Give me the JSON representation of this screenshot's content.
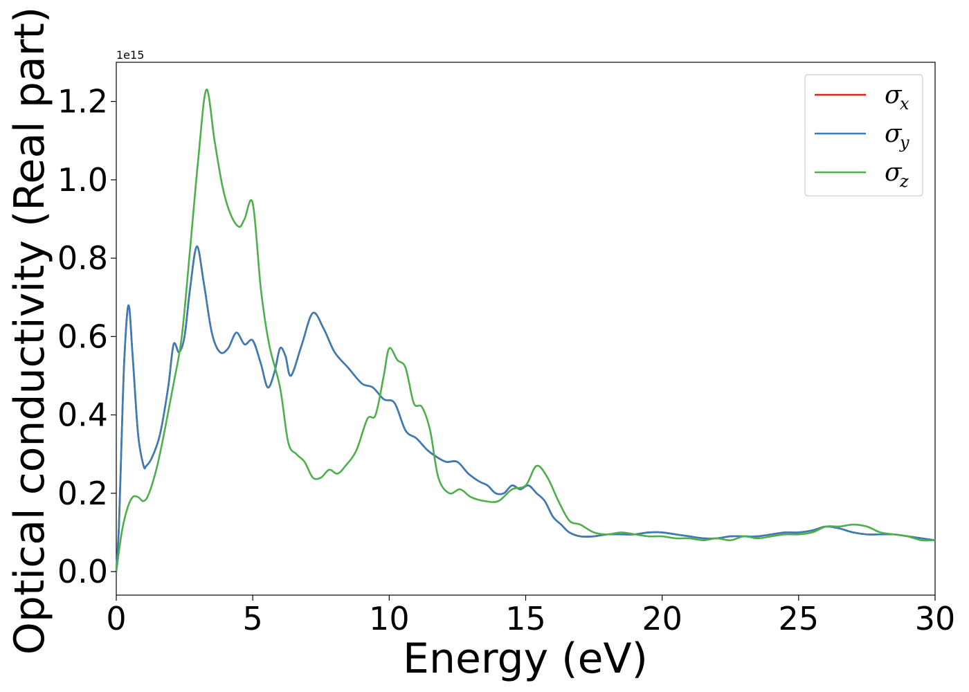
{
  "chart_data": {
    "type": "line",
    "xlabel": "Energy (eV)",
    "ylabel": "Optical conductivity (Real part)",
    "y_offset_label": "1e15",
    "xlim": [
      0,
      30
    ],
    "ylim": [
      -0.06,
      1.3
    ],
    "x_ticks": [
      0,
      5,
      10,
      15,
      20,
      25,
      30
    ],
    "x_tick_labels": [
      "0",
      "5",
      "10",
      "15",
      "20",
      "25",
      "30"
    ],
    "y_ticks": [
      0.0,
      0.2,
      0.4,
      0.6,
      0.8,
      1.0,
      1.2
    ],
    "y_tick_labels": [
      "0.0",
      "0.2",
      "0.4",
      "0.6",
      "0.8",
      "1.0",
      "1.2"
    ],
    "grid": false,
    "legend_position": "top-right",
    "series": [
      {
        "name": "σx",
        "symbol": "σ",
        "subscript": "x",
        "color": "#e41a1c",
        "x": [
          0,
          0.1,
          0.2,
          0.3,
          0.45,
          0.6,
          0.8,
          1.0,
          1.1,
          1.3,
          1.6,
          1.9,
          2.1,
          2.3,
          2.5,
          2.7,
          2.95,
          3.2,
          3.5,
          3.8,
          4.1,
          4.4,
          4.7,
          5.0,
          5.3,
          5.55,
          5.8,
          6.0,
          6.2,
          6.4,
          6.8,
          7.2,
          7.6,
          8.0,
          8.5,
          9.0,
          9.4,
          9.8,
          10.2,
          10.6,
          11.0,
          11.4,
          11.8,
          12.1,
          12.5,
          12.9,
          13.3,
          13.6,
          13.9,
          14.2,
          14.5,
          14.8,
          15.1,
          15.4,
          15.7,
          16.0,
          16.3,
          16.6,
          17.0,
          17.5,
          18.0,
          18.5,
          19.0,
          19.5,
          20.0,
          20.5,
          21.0,
          21.5,
          22.0,
          22.5,
          23.0,
          23.5,
          24.0,
          24.5,
          25.0,
          25.5,
          26.0,
          26.5,
          27.0,
          27.5,
          28.0,
          28.5,
          29.0,
          29.5,
          30.0
        ],
        "y": [
          0.0,
          0.12,
          0.35,
          0.55,
          0.68,
          0.55,
          0.35,
          0.27,
          0.27,
          0.29,
          0.35,
          0.47,
          0.58,
          0.56,
          0.6,
          0.72,
          0.83,
          0.74,
          0.61,
          0.56,
          0.57,
          0.61,
          0.58,
          0.59,
          0.53,
          0.47,
          0.51,
          0.57,
          0.55,
          0.5,
          0.58,
          0.66,
          0.62,
          0.56,
          0.52,
          0.48,
          0.47,
          0.44,
          0.43,
          0.36,
          0.34,
          0.31,
          0.29,
          0.28,
          0.28,
          0.25,
          0.23,
          0.22,
          0.2,
          0.2,
          0.22,
          0.21,
          0.22,
          0.2,
          0.18,
          0.14,
          0.12,
          0.1,
          0.09,
          0.09,
          0.095,
          0.095,
          0.095,
          0.1,
          0.1,
          0.095,
          0.09,
          0.085,
          0.085,
          0.09,
          0.09,
          0.09,
          0.095,
          0.1,
          0.1,
          0.105,
          0.115,
          0.11,
          0.1,
          0.095,
          0.095,
          0.095,
          0.09,
          0.085,
          0.08
        ]
      },
      {
        "name": "σy",
        "symbol": "σ",
        "subscript": "y",
        "color": "#377eb8",
        "x": [
          0,
          0.1,
          0.2,
          0.3,
          0.45,
          0.6,
          0.8,
          1.0,
          1.1,
          1.3,
          1.6,
          1.9,
          2.1,
          2.3,
          2.5,
          2.7,
          2.95,
          3.2,
          3.5,
          3.8,
          4.1,
          4.4,
          4.7,
          5.0,
          5.3,
          5.55,
          5.8,
          6.0,
          6.2,
          6.4,
          6.8,
          7.2,
          7.6,
          8.0,
          8.5,
          9.0,
          9.4,
          9.8,
          10.2,
          10.6,
          11.0,
          11.4,
          11.8,
          12.1,
          12.5,
          12.9,
          13.3,
          13.6,
          13.9,
          14.2,
          14.5,
          14.8,
          15.1,
          15.4,
          15.7,
          16.0,
          16.3,
          16.6,
          17.0,
          17.5,
          18.0,
          18.5,
          19.0,
          19.5,
          20.0,
          20.5,
          21.0,
          21.5,
          22.0,
          22.5,
          23.0,
          23.5,
          24.0,
          24.5,
          25.0,
          25.5,
          26.0,
          26.5,
          27.0,
          27.5,
          28.0,
          28.5,
          29.0,
          29.5,
          30.0
        ],
        "y": [
          0.0,
          0.12,
          0.35,
          0.55,
          0.68,
          0.55,
          0.35,
          0.27,
          0.27,
          0.29,
          0.35,
          0.47,
          0.58,
          0.56,
          0.6,
          0.72,
          0.83,
          0.74,
          0.61,
          0.56,
          0.57,
          0.61,
          0.58,
          0.59,
          0.53,
          0.47,
          0.51,
          0.57,
          0.55,
          0.5,
          0.58,
          0.66,
          0.62,
          0.56,
          0.52,
          0.48,
          0.47,
          0.44,
          0.43,
          0.36,
          0.34,
          0.31,
          0.29,
          0.28,
          0.28,
          0.25,
          0.23,
          0.22,
          0.2,
          0.2,
          0.22,
          0.21,
          0.22,
          0.2,
          0.18,
          0.14,
          0.12,
          0.1,
          0.09,
          0.09,
          0.095,
          0.095,
          0.095,
          0.1,
          0.1,
          0.095,
          0.09,
          0.085,
          0.085,
          0.09,
          0.09,
          0.09,
          0.095,
          0.1,
          0.1,
          0.105,
          0.115,
          0.11,
          0.1,
          0.095,
          0.095,
          0.095,
          0.09,
          0.085,
          0.08
        ]
      },
      {
        "name": "σz",
        "symbol": "σ",
        "subscript": "z",
        "color": "#4daf4a",
        "x": [
          0,
          0.2,
          0.4,
          0.6,
          0.8,
          1.0,
          1.2,
          1.5,
          1.8,
          2.1,
          2.4,
          2.7,
          3.0,
          3.3,
          3.6,
          3.9,
          4.2,
          4.5,
          4.7,
          5.0,
          5.3,
          5.6,
          6.0,
          6.3,
          6.6,
          6.9,
          7.2,
          7.5,
          7.8,
          8.1,
          8.4,
          8.8,
          9.2,
          9.5,
          9.8,
          10.0,
          10.3,
          10.6,
          10.9,
          11.2,
          11.5,
          11.8,
          12.2,
          12.6,
          13.0,
          13.5,
          14.0,
          14.5,
          15.0,
          15.4,
          15.8,
          16.2,
          16.6,
          17.0,
          17.5,
          18.0,
          18.5,
          19.0,
          19.5,
          20.0,
          20.5,
          21.0,
          21.5,
          22.0,
          22.5,
          23.0,
          23.5,
          24.0,
          24.5,
          25.0,
          25.5,
          26.0,
          26.5,
          27.0,
          27.5,
          28.0,
          28.5,
          29.0,
          29.5,
          30.0
        ],
        "y": [
          0.0,
          0.1,
          0.16,
          0.19,
          0.19,
          0.18,
          0.2,
          0.27,
          0.37,
          0.48,
          0.6,
          0.82,
          1.05,
          1.23,
          1.1,
          0.98,
          0.91,
          0.88,
          0.9,
          0.94,
          0.72,
          0.58,
          0.47,
          0.33,
          0.3,
          0.28,
          0.24,
          0.24,
          0.26,
          0.25,
          0.27,
          0.31,
          0.39,
          0.4,
          0.5,
          0.57,
          0.54,
          0.52,
          0.43,
          0.42,
          0.36,
          0.24,
          0.2,
          0.21,
          0.19,
          0.18,
          0.18,
          0.21,
          0.22,
          0.27,
          0.24,
          0.18,
          0.13,
          0.12,
          0.1,
          0.095,
          0.1,
          0.095,
          0.09,
          0.09,
          0.085,
          0.085,
          0.08,
          0.085,
          0.08,
          0.09,
          0.085,
          0.09,
          0.095,
          0.095,
          0.1,
          0.115,
          0.115,
          0.12,
          0.115,
          0.1,
          0.095,
          0.09,
          0.08,
          0.08
        ]
      }
    ]
  }
}
